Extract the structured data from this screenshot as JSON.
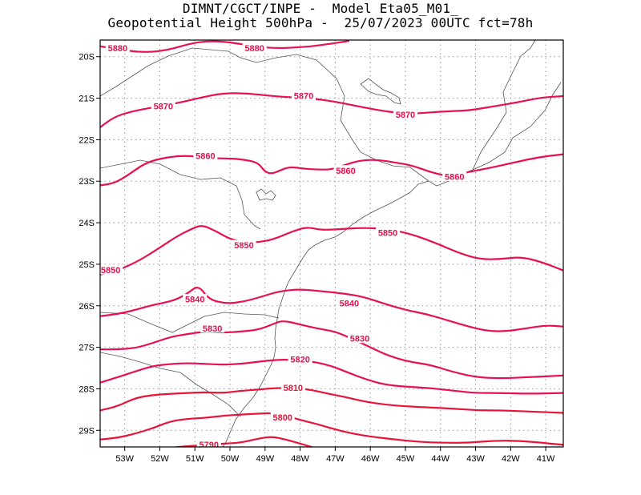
{
  "title": {
    "line1": "DIMNT/CGCT/INPE -  Model Eta05_M01_",
    "line2": "Geopotential Height 500hPa -  25/07/2023 00UTC fct=78h"
  },
  "map": {
    "lon_range": [
      -53.7,
      -40.5
    ],
    "lat_range": [
      -29.4,
      -19.6
    ],
    "lat_ticks": [
      {
        "v": -20,
        "label": "20S"
      },
      {
        "v": -21,
        "label": "21S"
      },
      {
        "v": -22,
        "label": "22S"
      },
      {
        "v": -23,
        "label": "23S"
      },
      {
        "v": -24,
        "label": "24S"
      },
      {
        "v": -25,
        "label": "25S"
      },
      {
        "v": -26,
        "label": "26S"
      },
      {
        "v": -27,
        "label": "27S"
      },
      {
        "v": -28,
        "label": "28S"
      },
      {
        "v": -29,
        "label": "29S"
      }
    ],
    "lon_ticks": [
      {
        "v": -53,
        "label": "53W"
      },
      {
        "v": -52,
        "label": "52W"
      },
      {
        "v": -51,
        "label": "51W"
      },
      {
        "v": -50,
        "label": "50W"
      },
      {
        "v": -49,
        "label": "49W"
      },
      {
        "v": -48,
        "label": "48W"
      },
      {
        "v": -47,
        "label": "47W"
      },
      {
        "v": -46,
        "label": "46W"
      },
      {
        "v": -45,
        "label": "45W"
      },
      {
        "v": -44,
        "label": "44W"
      },
      {
        "v": -43,
        "label": "43W"
      },
      {
        "v": -42,
        "label": "42W"
      },
      {
        "v": -41,
        "label": "41W"
      }
    ],
    "grid": "dotted"
  },
  "contours": [
    {
      "value": "5880",
      "color": "#e8104f",
      "labels": [
        [
          -53.2,
          -19.8
        ],
        [
          -49.3,
          -19.8
        ]
      ],
      "points": [
        [
          -53.7,
          -19.75
        ],
        [
          -53.2,
          -19.82
        ],
        [
          -52.5,
          -19.9
        ],
        [
          -51.8,
          -19.85
        ],
        [
          -51,
          -19.65
        ],
        [
          -50.3,
          -19.62
        ],
        [
          -49.5,
          -19.72
        ],
        [
          -48.8,
          -19.8
        ],
        [
          -48,
          -19.78
        ],
        [
          -47.2,
          -19.7
        ],
        [
          -46.6,
          -19.62
        ]
      ]
    },
    {
      "value": "5870",
      "color": "#e8104f",
      "labels": [
        [
          -51.9,
          -21.2
        ],
        [
          -47.9,
          -20.95
        ],
        [
          -45.0,
          -21.4
        ]
      ],
      "points": [
        [
          -53.7,
          -21.7
        ],
        [
          -53.3,
          -21.45
        ],
        [
          -52.8,
          -21.32
        ],
        [
          -52.2,
          -21.22
        ],
        [
          -51.5,
          -21.12
        ],
        [
          -50.8,
          -20.98
        ],
        [
          -50.2,
          -20.88
        ],
        [
          -49.5,
          -20.88
        ],
        [
          -48.8,
          -20.95
        ],
        [
          -48.2,
          -20.98
        ],
        [
          -47.5,
          -21.02
        ],
        [
          -46.9,
          -21.1
        ],
        [
          -46.2,
          -21.22
        ],
        [
          -45.5,
          -21.33
        ],
        [
          -44.8,
          -21.38
        ],
        [
          -44,
          -21.32
        ],
        [
          -43.2,
          -21.3
        ],
        [
          -42.5,
          -21.2
        ],
        [
          -41.8,
          -21.1
        ],
        [
          -41.1,
          -20.98
        ],
        [
          -40.5,
          -20.95
        ]
      ]
    },
    {
      "value": "5860",
      "color": "#e8104f",
      "labels": [
        [
          -50.7,
          -22.4
        ],
        [
          -46.7,
          -22.75
        ],
        [
          -43.6,
          -22.9
        ]
      ],
      "points": [
        [
          -53.7,
          -23.1
        ],
        [
          -53.3,
          -23.05
        ],
        [
          -52.9,
          -22.85
        ],
        [
          -52.4,
          -22.55
        ],
        [
          -51.8,
          -22.42
        ],
        [
          -51.2,
          -22.38
        ],
        [
          -50.6,
          -22.45
        ],
        [
          -50.0,
          -22.45
        ],
        [
          -49.6,
          -22.48
        ],
        [
          -49.2,
          -22.55
        ],
        [
          -49.0,
          -22.78
        ],
        [
          -48.8,
          -22.82
        ],
        [
          -48.6,
          -22.75
        ],
        [
          -48.3,
          -22.65
        ],
        [
          -47.9,
          -22.7
        ],
        [
          -47.5,
          -22.72
        ],
        [
          -47.1,
          -22.72
        ],
        [
          -46.7,
          -22.6
        ],
        [
          -46.3,
          -22.5
        ],
        [
          -45.8,
          -22.48
        ],
        [
          -45.3,
          -22.55
        ],
        [
          -44.8,
          -22.62
        ],
        [
          -44.3,
          -22.78
        ],
        [
          -43.8,
          -22.88
        ],
        [
          -43.2,
          -22.78
        ],
        [
          -42.6,
          -22.68
        ],
        [
          -41.9,
          -22.55
        ],
        [
          -41.2,
          -22.42
        ],
        [
          -40.5,
          -22.35
        ]
      ]
    },
    {
      "value": "5850",
      "color": "#e8104f",
      "labels": [
        [
          -53.4,
          -25.15
        ],
        [
          -49.6,
          -24.55
        ],
        [
          -45.5,
          -24.25
        ]
      ],
      "points": [
        [
          -53.7,
          -25.25
        ],
        [
          -53.2,
          -25.15
        ],
        [
          -52.6,
          -24.92
        ],
        [
          -52.0,
          -24.6
        ],
        [
          -51.5,
          -24.32
        ],
        [
          -51.1,
          -24.15
        ],
        [
          -50.8,
          -24.05
        ],
        [
          -50.4,
          -24.2
        ],
        [
          -50.0,
          -24.4
        ],
        [
          -49.5,
          -24.48
        ],
        [
          -49.0,
          -24.45
        ],
        [
          -48.6,
          -24.35
        ],
        [
          -48.2,
          -24.2
        ],
        [
          -47.8,
          -24.1
        ],
        [
          -47.4,
          -24.18
        ],
        [
          -46.8,
          -24.15
        ],
        [
          -46.2,
          -24.12
        ],
        [
          -45.5,
          -24.15
        ],
        [
          -44.8,
          -24.28
        ],
        [
          -44.1,
          -24.5
        ],
        [
          -43.5,
          -24.72
        ],
        [
          -42.9,
          -24.88
        ],
        [
          -42.3,
          -24.88
        ],
        [
          -41.7,
          -24.82
        ],
        [
          -41.1,
          -24.95
        ],
        [
          -40.5,
          -25.15
        ]
      ]
    },
    {
      "value": "5840",
      "color": "#e8104f",
      "labels": [
        [
          -51.0,
          -25.85
        ],
        [
          -46.6,
          -25.95
        ]
      ],
      "points": [
        [
          -53.7,
          -26.25
        ],
        [
          -53.2,
          -26.2
        ],
        [
          -52.7,
          -26.1
        ],
        [
          -52.2,
          -25.98
        ],
        [
          -51.6,
          -25.88
        ],
        [
          -51.2,
          -25.7
        ],
        [
          -50.9,
          -25.5
        ],
        [
          -50.6,
          -25.85
        ],
        [
          -50.1,
          -25.95
        ],
        [
          -49.6,
          -25.9
        ],
        [
          -49.1,
          -25.78
        ],
        [
          -48.6,
          -25.65
        ],
        [
          -48.0,
          -25.6
        ],
        [
          -47.4,
          -25.65
        ],
        [
          -46.8,
          -25.7
        ],
        [
          -46.2,
          -25.78
        ],
        [
          -45.6,
          -25.95
        ],
        [
          -45.0,
          -26.1
        ],
        [
          -44.4,
          -26.2
        ],
        [
          -43.8,
          -26.35
        ],
        [
          -43.2,
          -26.5
        ],
        [
          -42.7,
          -26.6
        ],
        [
          -42.2,
          -26.62
        ],
        [
          -41.6,
          -26.55
        ],
        [
          -41.0,
          -26.47
        ],
        [
          -40.5,
          -26.5
        ]
      ]
    },
    {
      "value": "5830",
      "color": "#e8104f",
      "labels": [
        [
          -50.5,
          -26.55
        ],
        [
          -46.3,
          -26.8
        ]
      ],
      "points": [
        [
          -53.7,
          -27.05
        ],
        [
          -53.2,
          -27.05
        ],
        [
          -52.7,
          -27.02
        ],
        [
          -52.2,
          -26.9
        ],
        [
          -51.7,
          -26.75
        ],
        [
          -51.2,
          -26.68
        ],
        [
          -50.7,
          -26.62
        ],
        [
          -50.2,
          -26.65
        ],
        [
          -49.7,
          -26.62
        ],
        [
          -49.2,
          -26.58
        ],
        [
          -48.8,
          -26.45
        ],
        [
          -48.5,
          -26.35
        ],
        [
          -48.0,
          -26.45
        ],
        [
          -47.5,
          -26.55
        ],
        [
          -47.0,
          -26.62
        ],
        [
          -46.5,
          -26.8
        ],
        [
          -46.0,
          -27.0
        ],
        [
          -45.5,
          -27.2
        ],
        [
          -44.9,
          -27.35
        ],
        [
          -44.3,
          -27.42
        ],
        [
          -43.7,
          -27.58
        ],
        [
          -43.0,
          -27.72
        ],
        [
          -42.3,
          -27.75
        ],
        [
          -41.5,
          -27.72
        ],
        [
          -40.5,
          -27.68
        ]
      ]
    },
    {
      "value": "5820",
      "color": "#e8104f",
      "labels": [
        [
          -48.0,
          -27.3
        ]
      ],
      "points": [
        [
          -53.7,
          -27.85
        ],
        [
          -53.2,
          -27.72
        ],
        [
          -52.7,
          -27.58
        ],
        [
          -52.2,
          -27.45
        ],
        [
          -51.7,
          -27.4
        ],
        [
          -51.2,
          -27.38
        ],
        [
          -50.7,
          -27.4
        ],
        [
          -50.2,
          -27.42
        ],
        [
          -49.7,
          -27.4
        ],
        [
          -49.2,
          -27.35
        ],
        [
          -48.7,
          -27.3
        ],
        [
          -48.2,
          -27.3
        ],
        [
          -47.6,
          -27.35
        ],
        [
          -47.1,
          -27.45
        ],
        [
          -46.6,
          -27.62
        ],
        [
          -46.1,
          -27.78
        ],
        [
          -45.6,
          -27.9
        ],
        [
          -45.0,
          -27.95
        ],
        [
          -44.3,
          -27.98
        ],
        [
          -43.6,
          -28.05
        ],
        [
          -43.0,
          -28.1
        ],
        [
          -42.3,
          -28.1
        ],
        [
          -41.5,
          -28.12
        ],
        [
          -40.5,
          -28.1
        ]
      ]
    },
    {
      "value": "5810",
      "color": "#e8143a",
      "labels": [
        [
          -48.2,
          -27.98
        ]
      ],
      "points": [
        [
          -53.7,
          -28.52
        ],
        [
          -53.2,
          -28.42
        ],
        [
          -52.7,
          -28.22
        ],
        [
          -52.2,
          -28.15
        ],
        [
          -51.7,
          -28.12
        ],
        [
          -51.2,
          -28.1
        ],
        [
          -50.7,
          -28.08
        ],
        [
          -50.2,
          -28.1
        ],
        [
          -49.7,
          -28.05
        ],
        [
          -49.2,
          -28.02
        ],
        [
          -48.7,
          -27.98
        ],
        [
          -48.2,
          -27.98
        ],
        [
          -47.7,
          -28.02
        ],
        [
          -47.2,
          -28.12
        ],
        [
          -46.7,
          -28.2
        ],
        [
          -46.2,
          -28.3
        ],
        [
          -45.6,
          -28.38
        ],
        [
          -45.0,
          -28.42
        ],
        [
          -44.3,
          -28.45
        ],
        [
          -43.6,
          -28.48
        ],
        [
          -42.9,
          -28.52
        ],
        [
          -42.2,
          -28.52
        ],
        [
          -41.4,
          -28.55
        ],
        [
          -40.5,
          -28.58
        ]
      ]
    },
    {
      "value": "5800",
      "color": "#e8143a",
      "labels": [
        [
          -48.5,
          -28.7
        ]
      ],
      "points": [
        [
          -53.7,
          -29.22
        ],
        [
          -53.2,
          -29.18
        ],
        [
          -52.7,
          -29.08
        ],
        [
          -52.2,
          -28.95
        ],
        [
          -51.7,
          -28.78
        ],
        [
          -51.2,
          -28.72
        ],
        [
          -50.7,
          -28.7
        ],
        [
          -50.2,
          -28.65
        ],
        [
          -49.7,
          -28.62
        ],
        [
          -49.2,
          -28.6
        ],
        [
          -48.8,
          -28.58
        ],
        [
          -48.4,
          -28.65
        ],
        [
          -48.0,
          -28.75
        ],
        [
          -47.5,
          -28.85
        ],
        [
          -47.0,
          -28.98
        ],
        [
          -46.5,
          -29.08
        ],
        [
          -46.0,
          -29.15
        ],
        [
          -45.3,
          -29.22
        ],
        [
          -44.6,
          -29.28
        ],
        [
          -43.9,
          -29.3
        ],
        [
          -43.2,
          -29.3
        ],
        [
          -42.5,
          -29.25
        ],
        [
          -41.8,
          -29.25
        ],
        [
          -41.1,
          -29.3
        ],
        [
          -40.5,
          -29.35
        ]
      ]
    },
    {
      "value": "5790",
      "color": "#e8143a",
      "labels": [
        [
          -50.6,
          -29.35
        ]
      ],
      "points": [
        [
          -51.7,
          -29.42
        ],
        [
          -51.2,
          -29.38
        ],
        [
          -50.7,
          -29.35
        ],
        [
          -50.2,
          -29.32
        ],
        [
          -49.7,
          -29.3
        ],
        [
          -49.2,
          -29.2
        ],
        [
          -48.8,
          -29.15
        ],
        [
          -48.4,
          -29.22
        ],
        [
          -48.0,
          -29.32
        ],
        [
          -47.6,
          -29.42
        ]
      ]
    }
  ],
  "colors": {
    "frame": "#000000",
    "grid": "#999999",
    "borders": "#555555"
  }
}
